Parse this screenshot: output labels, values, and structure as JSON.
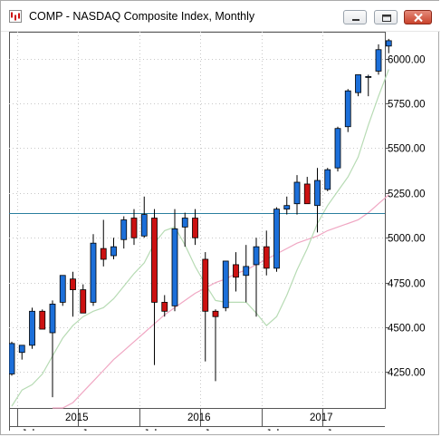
{
  "window": {
    "title": "COMP - NASDAQ Composite Index, Monthly",
    "icons": {
      "app": "chart-icon",
      "minimize": "minimize-icon",
      "maximize": "maximize-icon",
      "close": "close-icon"
    }
  },
  "chart_data": {
    "type": "candlestick",
    "symbol": "COMP",
    "title": "COMP - NASDAQ Composite Index, Monthly",
    "ylim": [
      4050,
      6150
    ],
    "y_ticks": [
      {
        "value": 6000,
        "label": "6000.00"
      },
      {
        "value": 5750,
        "label": "5750.00"
      },
      {
        "value": 5500,
        "label": "5500.00"
      },
      {
        "value": 5250,
        "label": "5250.00"
      },
      {
        "value": 5000,
        "label": "5000.00"
      },
      {
        "value": 4750,
        "label": "4750.00"
      },
      {
        "value": 4500,
        "label": "4500.00"
      },
      {
        "value": 4250,
        "label": "4250.00"
      }
    ],
    "x_tick_labels": [
      {
        "month_index": 1,
        "label": "Jul"
      },
      {
        "month_index": 7,
        "label": "Jan"
      },
      {
        "month_index": 13,
        "label": "Jul"
      },
      {
        "month_index": 19,
        "label": "Jan"
      },
      {
        "month_index": 25,
        "label": "Jul"
      },
      {
        "month_index": 31,
        "label": "Jan"
      }
    ],
    "year_labels": [
      {
        "month_index": 7,
        "label": "2015"
      },
      {
        "month_index": 19,
        "label": "2016"
      },
      {
        "month_index": 31,
        "label": "2017"
      }
    ],
    "horizontal_line": 5140,
    "colors": {
      "up": "#1c6fd9",
      "down": "#cc1111",
      "wick": "#000000",
      "hline": "#2a7f9e",
      "ma_fast": "#b7dbb4",
      "ma_slow": "#f0a7c3"
    },
    "candles": [
      {
        "o": 4240,
        "h": 4420,
        "l": 4230,
        "c": 4410
      },
      {
        "o": 4360,
        "h": 4400,
        "l": 4320,
        "c": 4400
      },
      {
        "o": 4400,
        "h": 4610,
        "l": 4380,
        "c": 4590
      },
      {
        "o": 4590,
        "h": 4600,
        "l": 4500,
        "c": 4490
      },
      {
        "o": 4470,
        "h": 4650,
        "l": 4110,
        "c": 4630
      },
      {
        "o": 4640,
        "h": 4790,
        "l": 4620,
        "c": 4790
      },
      {
        "o": 4770,
        "h": 4810,
        "l": 4560,
        "c": 4710
      },
      {
        "o": 4710,
        "h": 4740,
        "l": 4580,
        "c": 4580
      },
      {
        "o": 4640,
        "h": 5020,
        "l": 4620,
        "c": 4970
      },
      {
        "o": 4940,
        "h": 5100,
        "l": 4840,
        "c": 4880
      },
      {
        "o": 4900,
        "h": 5000,
        "l": 4880,
        "c": 4950
      },
      {
        "o": 4990,
        "h": 5120,
        "l": 4940,
        "c": 5100
      },
      {
        "o": 5110,
        "h": 5160,
        "l": 4960,
        "c": 5000
      },
      {
        "o": 5010,
        "h": 5230,
        "l": 5000,
        "c": 5130
      },
      {
        "o": 5110,
        "h": 5160,
        "l": 4290,
        "c": 4640
      },
      {
        "o": 4640,
        "h": 4680,
        "l": 4560,
        "c": 4590
      },
      {
        "o": 4620,
        "h": 5160,
        "l": 4590,
        "c": 5050
      },
      {
        "o": 5060,
        "h": 5140,
        "l": 4950,
        "c": 5110
      },
      {
        "o": 5110,
        "h": 5160,
        "l": 4960,
        "c": 5000
      },
      {
        "o": 4880,
        "h": 4920,
        "l": 4310,
        "c": 4590
      },
      {
        "o": 4590,
        "h": 4600,
        "l": 4200,
        "c": 4560
      },
      {
        "o": 4610,
        "h": 4870,
        "l": 4590,
        "c": 4870
      },
      {
        "o": 4850,
        "h": 4920,
        "l": 4700,
        "c": 4780
      },
      {
        "o": 4790,
        "h": 4960,
        "l": 4640,
        "c": 4840
      },
      {
        "o": 4850,
        "h": 5000,
        "l": 4560,
        "c": 4950
      },
      {
        "o": 4950,
        "h": 5040,
        "l": 4790,
        "c": 4830
      },
      {
        "o": 4830,
        "h": 5170,
        "l": 4810,
        "c": 5160
      },
      {
        "o": 5160,
        "h": 5230,
        "l": 5130,
        "c": 5180
      },
      {
        "o": 5190,
        "h": 5350,
        "l": 5130,
        "c": 5310
      },
      {
        "o": 5300,
        "h": 5340,
        "l": 5200,
        "c": 5190
      },
      {
        "o": 5180,
        "h": 5390,
        "l": 5030,
        "c": 5320
      },
      {
        "o": 5270,
        "h": 5390,
        "l": 5260,
        "c": 5380
      },
      {
        "o": 5390,
        "h": 5620,
        "l": 5370,
        "c": 5610
      },
      {
        "o": 5620,
        "h": 5830,
        "l": 5590,
        "c": 5820
      },
      {
        "o": 5810,
        "h": 5910,
        "l": 5790,
        "c": 5910
      },
      {
        "o": 5900,
        "h": 5910,
        "l": 5790,
        "c": 5900
      },
      {
        "o": 5930,
        "h": 6080,
        "l": 5910,
        "c": 6050
      },
      {
        "o": 6070,
        "h": 6110,
        "l": 6030,
        "c": 6100
      }
    ],
    "ma_fast": [
      4060,
      4150,
      4180,
      4240,
      4340,
      4440,
      4510,
      4560,
      4590,
      4610,
      4660,
      4730,
      4800,
      4860,
      4970,
      5040,
      5060,
      4960,
      4840,
      4740,
      4650,
      4640,
      4640,
      4640,
      4580,
      4510,
      4560,
      4680,
      4820,
      4940,
      5080,
      5180,
      5260,
      5340,
      5450,
      5630,
      5790,
      5940
    ],
    "ma_slow": [
      null,
      null,
      null,
      null,
      3960,
      4020,
      4080,
      4140,
      4200,
      4260,
      4320,
      4370,
      4420,
      4470,
      4520,
      4570,
      4610,
      4650,
      4690,
      4720,
      4750,
      4770,
      4800,
      4820,
      4850,
      4880,
      4910,
      4940,
      4970,
      4990,
      5010,
      5040,
      5060,
      5080,
      5100,
      5140,
      5190,
      5240
    ]
  }
}
